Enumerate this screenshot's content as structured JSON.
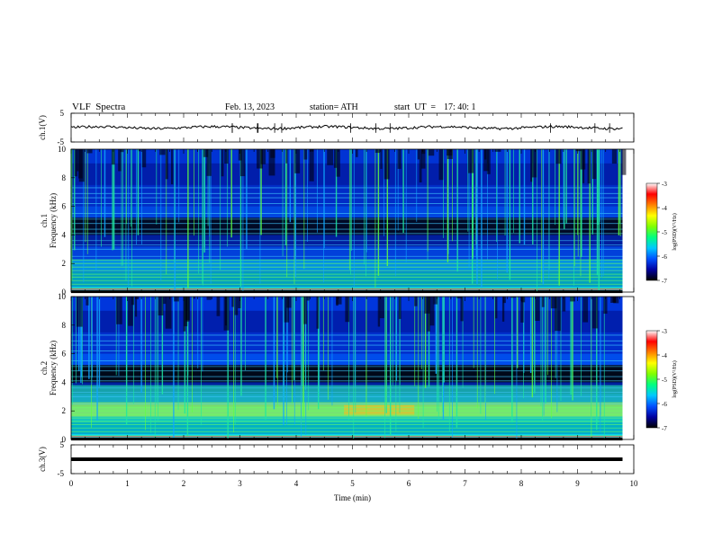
{
  "header": {
    "title": "VLF  Spectra",
    "date": "Feb. 13, 2023",
    "station": "station= ATH",
    "start_label": "start  UT  =",
    "start_time": "17: 40: 1"
  },
  "colors": {
    "trace": "#000000",
    "spectrogram_background": "#0a1a8c",
    "colormap": [
      "#000000",
      "#0000a0",
      "#0050ff",
      "#00c8ff",
      "#00ff80",
      "#80ff00",
      "#ffff00",
      "#ff8000",
      "#ff0000",
      "#ffffff"
    ]
  },
  "chart_data": [
    {
      "type": "line",
      "panel": "ch1-waveform",
      "ylabel": "ch.1(V)",
      "ylim": [
        -5,
        5
      ],
      "yticks": [
        "5",
        "-5"
      ],
      "x_range_min": [
        0,
        9.8
      ],
      "series": [
        {
          "values_approx": 0
        }
      ]
    },
    {
      "type": "heatmap",
      "panel": "ch1-spectrogram",
      "ylabel": "ch.1\nFrequency  (kHz)",
      "ylim": [
        0,
        10
      ],
      "yticks": [
        "0",
        "2",
        "4",
        "6",
        "8",
        "10"
      ],
      "x_range_min": [
        0,
        9.8
      ],
      "colorbar": {
        "label": "log(PSD)(V²/Hz)",
        "range": [
          -7,
          -3
        ],
        "ticks": [
          "-3",
          "-4",
          "-5",
          "-6",
          "-7"
        ]
      }
    },
    {
      "type": "heatmap",
      "panel": "ch2-spectrogram",
      "ylabel": "ch.2\nFrequency  (kHz)",
      "ylim": [
        0,
        10
      ],
      "yticks": [
        "0",
        "2",
        "4",
        "6",
        "8",
        "10"
      ],
      "x_range_min": [
        0,
        9.8
      ],
      "colorbar": {
        "label": "log(PSD)(V²/Hz)",
        "range": [
          -7,
          -3
        ],
        "ticks": [
          "-3",
          "-4",
          "-5",
          "-6",
          "-7"
        ]
      }
    },
    {
      "type": "line",
      "panel": "ch3-waveform",
      "ylabel": "ch.3(V)",
      "ylim": [
        -5,
        5
      ],
      "yticks": [
        "5",
        "-5"
      ],
      "x_range_min": [
        0,
        9.8
      ],
      "series": [
        {
          "values_approx": 0
        }
      ]
    }
  ],
  "xaxis": {
    "label": "Time  (min)",
    "xlim": [
      0,
      10
    ],
    "ticks": [
      "0",
      "1",
      "2",
      "3",
      "4",
      "5",
      "6",
      "7",
      "8",
      "9",
      "10"
    ]
  }
}
